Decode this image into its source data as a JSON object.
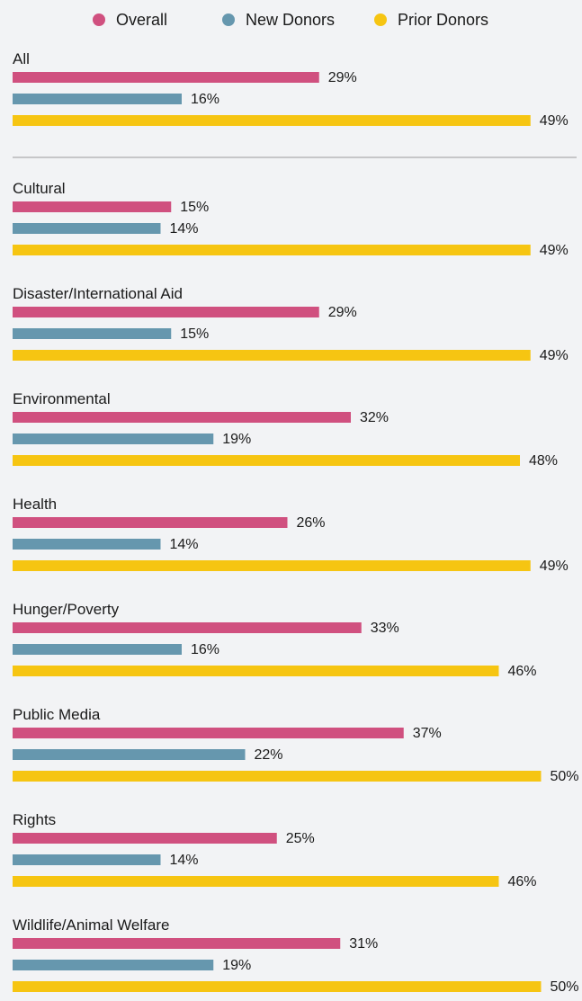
{
  "chart_data": {
    "type": "bar",
    "orientation": "horizontal",
    "legend_placement": "top",
    "grid": false,
    "xlim": [
      0,
      50
    ],
    "series": [
      {
        "name": "Overall",
        "color": "#d0507f"
      },
      {
        "name": "New Donors",
        "color": "#6697ae"
      },
      {
        "name": "Prior Donors",
        "color": "#f6c512"
      }
    ],
    "groups": [
      {
        "label": "All",
        "values": [
          29,
          16,
          49
        ],
        "labels": [
          "29%",
          "16%",
          "49%"
        ]
      },
      {
        "label": "Cultural",
        "values": [
          15,
          14,
          49
        ],
        "labels": [
          "15%",
          "14%",
          "49%"
        ]
      },
      {
        "label": "Disaster/International Aid",
        "values": [
          29,
          15,
          49
        ],
        "labels": [
          "29%",
          "15%",
          "49%"
        ]
      },
      {
        "label": "Environmental",
        "values": [
          32,
          19,
          48
        ],
        "labels": [
          "32%",
          "19%",
          "48%"
        ]
      },
      {
        "label": "Health",
        "values": [
          26,
          14,
          49
        ],
        "labels": [
          "26%",
          "14%",
          "49%"
        ]
      },
      {
        "label": "Hunger/Poverty",
        "values": [
          33,
          16,
          46
        ],
        "labels": [
          "33%",
          "16%",
          "46%"
        ]
      },
      {
        "label": "Public Media",
        "values": [
          37,
          22,
          50
        ],
        "labels": [
          "37%",
          "22%",
          "50%"
        ]
      },
      {
        "label": "Rights",
        "values": [
          25,
          14,
          46
        ],
        "labels": [
          "25%",
          "14%",
          "46%"
        ]
      },
      {
        "label": "Wildlife/Animal Welfare",
        "values": [
          31,
          19,
          50
        ],
        "labels": [
          "31%",
          "19%",
          "50%"
        ]
      }
    ]
  }
}
